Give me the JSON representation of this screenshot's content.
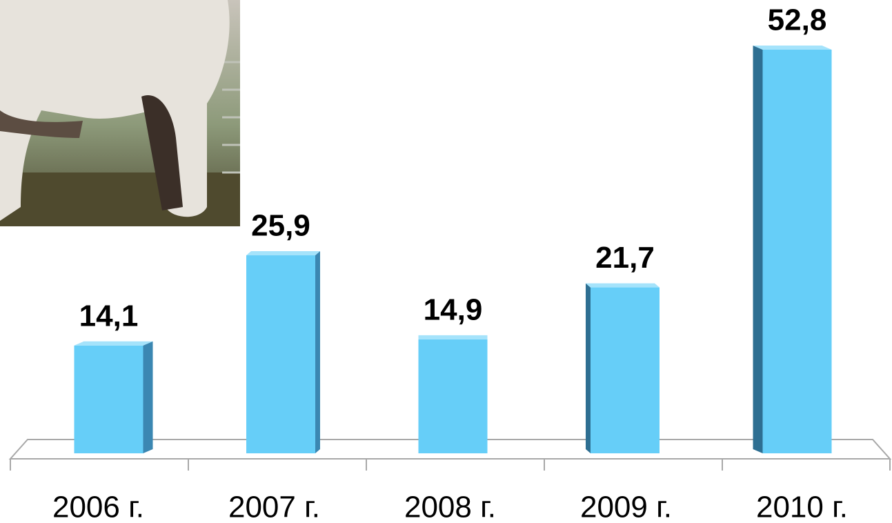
{
  "chart_data": {
    "type": "bar",
    "categories": [
      "2006 г.",
      "2007 г.",
      "2008 г.",
      "2009 г.",
      "2010 г."
    ],
    "values": [
      14.1,
      25.9,
      14.9,
      21.7,
      52.8
    ],
    "value_labels": [
      "14,1",
      "25,9",
      "14,9",
      "21,7",
      "52,8"
    ],
    "color": "#66cef8"
  }
}
